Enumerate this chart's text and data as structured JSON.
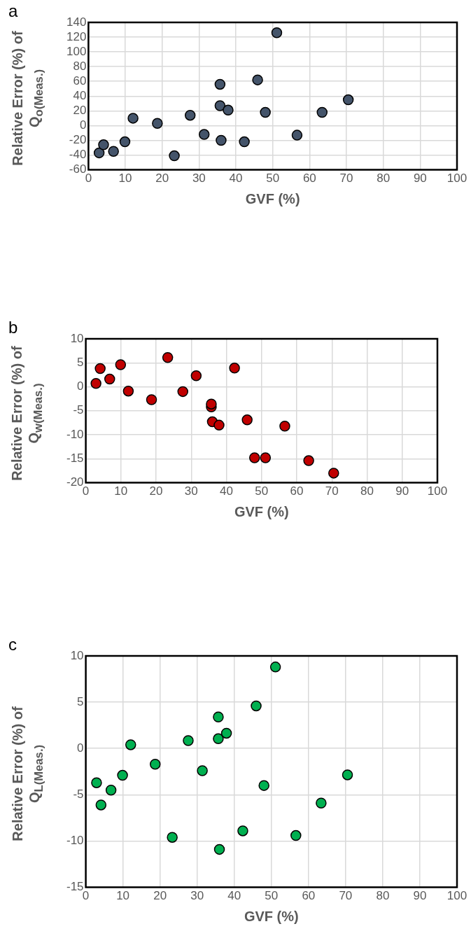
{
  "chart_data": [
    {
      "type": "scatter",
      "title": "a",
      "xlabel": "GVF (%)",
      "ylabel": "Relative Error (%) of Q$_{o(Meas.)}$",
      "x": [
        2.9,
        4.1,
        6.8,
        9.9,
        12.1,
        18.7,
        23.3,
        27.6,
        31.4,
        35.7,
        35.7,
        36.0,
        37.9,
        42.3,
        45.9,
        48.0,
        51.1,
        56.6,
        63.4,
        70.5
      ],
      "series": [
        {
          "color": "#44546a",
          "values": [
            -37,
            -26,
            -35,
            -22,
            10,
            3,
            -41,
            14,
            -12,
            56,
            27,
            -20,
            21,
            -22,
            62,
            18,
            126,
            -13,
            18,
            35
          ]
        }
      ],
      "xlim": [
        0,
        100
      ],
      "xticks": [
        0,
        10,
        20,
        30,
        40,
        50,
        60,
        70,
        80,
        90,
        100
      ],
      "ylim": [
        -60,
        140
      ],
      "yticks": [
        -60,
        -40,
        -20,
        0,
        20,
        40,
        60,
        80,
        100,
        120,
        140
      ],
      "grid": true,
      "marker": "circle"
    },
    {
      "type": "scatter",
      "title": "b",
      "xlabel": "GVF (%)",
      "ylabel": "Relative Error (%) of Q$_{w(Meas.)}$",
      "x": [
        2.9,
        4.1,
        6.8,
        9.9,
        12.1,
        18.7,
        23.3,
        27.6,
        31.4,
        35.7,
        35.7,
        36.0,
        37.9,
        42.3,
        45.9,
        48.0,
        51.1,
        56.6,
        63.4,
        70.5
      ],
      "series": [
        {
          "color": "#c00000",
          "values": [
            0.7,
            3.8,
            1.6,
            4.6,
            -0.9,
            -2.7,
            6.1,
            -1.0,
            2.3,
            -4.2,
            -3.6,
            -7.3,
            -8.0,
            3.9,
            -6.9,
            -14.8,
            -14.8,
            -8.2,
            -15.4,
            -18.0
          ]
        }
      ],
      "xlim": [
        0,
        100
      ],
      "xticks": [
        0,
        10,
        20,
        30,
        40,
        50,
        60,
        70,
        80,
        90,
        100
      ],
      "ylim": [
        -20,
        10
      ],
      "yticks": [
        -20,
        -15,
        -10,
        -5,
        0,
        5,
        10
      ],
      "grid": true,
      "marker": "circle"
    },
    {
      "type": "scatter",
      "title": "c",
      "xlabel": "GVF (%)",
      "ylabel": "Relative Error (%) of Q$_{L(Meas.)}$",
      "x": [
        2.9,
        4.1,
        6.8,
        9.9,
        12.1,
        18.7,
        23.3,
        27.6,
        31.4,
        35.7,
        35.7,
        36.0,
        37.9,
        42.3,
        45.9,
        48.0,
        51.1,
        56.6,
        63.4,
        70.5
      ],
      "series": [
        {
          "color": "#00b050",
          "values": [
            -3.7,
            -6.1,
            -4.5,
            -2.9,
            0.4,
            -1.7,
            -9.6,
            0.85,
            -2.4,
            3.4,
            1.05,
            -10.9,
            1.65,
            -8.9,
            4.6,
            -4.0,
            8.8,
            -9.4,
            -5.9,
            -2.85
          ]
        }
      ],
      "xlim": [
        0,
        100
      ],
      "xticks": [
        0,
        10,
        20,
        30,
        40,
        50,
        60,
        70,
        80,
        90,
        100
      ],
      "ylim": [
        -15,
        10
      ],
      "yticks": [
        -15,
        -10,
        -5,
        0,
        5,
        10
      ],
      "grid": true,
      "marker": "circle"
    }
  ]
}
